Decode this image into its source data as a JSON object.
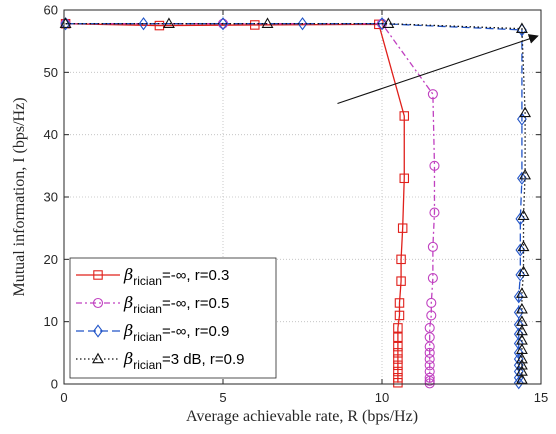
{
  "chart_data": {
    "type": "line",
    "xlabel": "Average achievable rate, R (bps/Hz)",
    "ylabel": "Mutual information, I (bps/Hz)",
    "xlim": [
      0,
      15
    ],
    "ylim": [
      0,
      60
    ],
    "xticks": [
      "0",
      "5",
      "10",
      "15"
    ],
    "yticks": [
      "0",
      "10",
      "20",
      "30",
      "40",
      "50",
      "60"
    ],
    "grid": true,
    "legend_position": "bottom-left",
    "series": [
      {
        "name": "β_rician=-∞, r=0.3",
        "legend": {
          "beta": "β",
          "sub": "rician",
          "rest": "=-∞, r=0.3"
        },
        "color": "#e0201b",
        "dash": "solid",
        "marker": "square",
        "x": [
          0.05,
          3.0,
          6.0,
          9.9,
          10.7,
          10.7,
          10.65,
          10.6,
          10.6,
          10.55,
          10.55,
          10.5,
          10.5,
          10.5,
          10.5,
          10.5,
          10.5,
          10.5,
          10.5,
          10.5
        ],
        "y": [
          57.8,
          57.5,
          57.6,
          57.7,
          43.0,
          33.0,
          25.0,
          20.0,
          16.5,
          13.0,
          11.0,
          9.0,
          7.5,
          6.0,
          5.0,
          4.0,
          3.0,
          2.0,
          1.0,
          0.2
        ]
      },
      {
        "name": "β_rician=-∞, r=0.5",
        "legend": {
          "beta": "β",
          "sub": "rician",
          "rest": "=-∞, r=0.5"
        },
        "color": "#c040c0",
        "dash": "6,3,2,3",
        "marker": "circle",
        "x": [
          0.05,
          5.0,
          10.0,
          11.6,
          11.65,
          11.65,
          11.6,
          11.6,
          11.55,
          11.55,
          11.5,
          11.5,
          11.5,
          11.5,
          11.5,
          11.5,
          11.5,
          11.5,
          11.5,
          11.5
        ],
        "y": [
          57.8,
          57.8,
          57.8,
          46.5,
          35.0,
          27.5,
          22.0,
          17.0,
          13.0,
          11.0,
          9.0,
          7.5,
          6.0,
          5.0,
          4.0,
          3.0,
          2.0,
          1.0,
          0.5,
          0.1
        ]
      },
      {
        "name": "β_rician=-∞, r=0.9",
        "legend": {
          "beta": "β",
          "sub": "rician",
          "rest": "=-∞, r=0.9"
        },
        "color": "#2255c8",
        "dash": "8,4",
        "marker": "diamond",
        "x": [
          0.05,
          2.5,
          5.0,
          7.5,
          10.0,
          14.4,
          14.4,
          14.4,
          14.35,
          14.35,
          14.35,
          14.3,
          14.3,
          14.3,
          14.3,
          14.3,
          14.3,
          14.3,
          14.3,
          14.3,
          14.3,
          14.3
        ],
        "y": [
          57.8,
          57.8,
          57.8,
          57.8,
          57.8,
          56.8,
          42.5,
          33.0,
          26.5,
          21.5,
          17.5,
          14.0,
          11.5,
          9.5,
          8.0,
          6.5,
          5.0,
          4.0,
          3.0,
          2.0,
          1.0,
          0.2
        ]
      },
      {
        "name": "β_rician=3 dB, r=0.9",
        "legend": {
          "beta": "β",
          "sub": "rician",
          "rest": "=3 dB, r=0.9"
        },
        "color": "#111111",
        "dash": "1.5,2.5",
        "marker": "triangle",
        "x": [
          0.05,
          3.3,
          6.4,
          10.2,
          14.4,
          14.5,
          14.5,
          14.45,
          14.45,
          14.45,
          14.4,
          14.4,
          14.4,
          14.4,
          14.4,
          14.4,
          14.4,
          14.4,
          14.4,
          14.4
        ],
        "y": [
          57.8,
          57.8,
          57.8,
          57.8,
          57.0,
          43.5,
          33.5,
          27.0,
          22.0,
          18.0,
          14.5,
          12.0,
          10.0,
          8.5,
          7.0,
          5.5,
          4.0,
          3.0,
          2.0,
          0.7
        ]
      }
    ],
    "annotations": [
      {
        "type": "arrow",
        "from": [
          8.6,
          45.0
        ],
        "to": [
          14.9,
          63.2
        ]
      }
    ]
  }
}
